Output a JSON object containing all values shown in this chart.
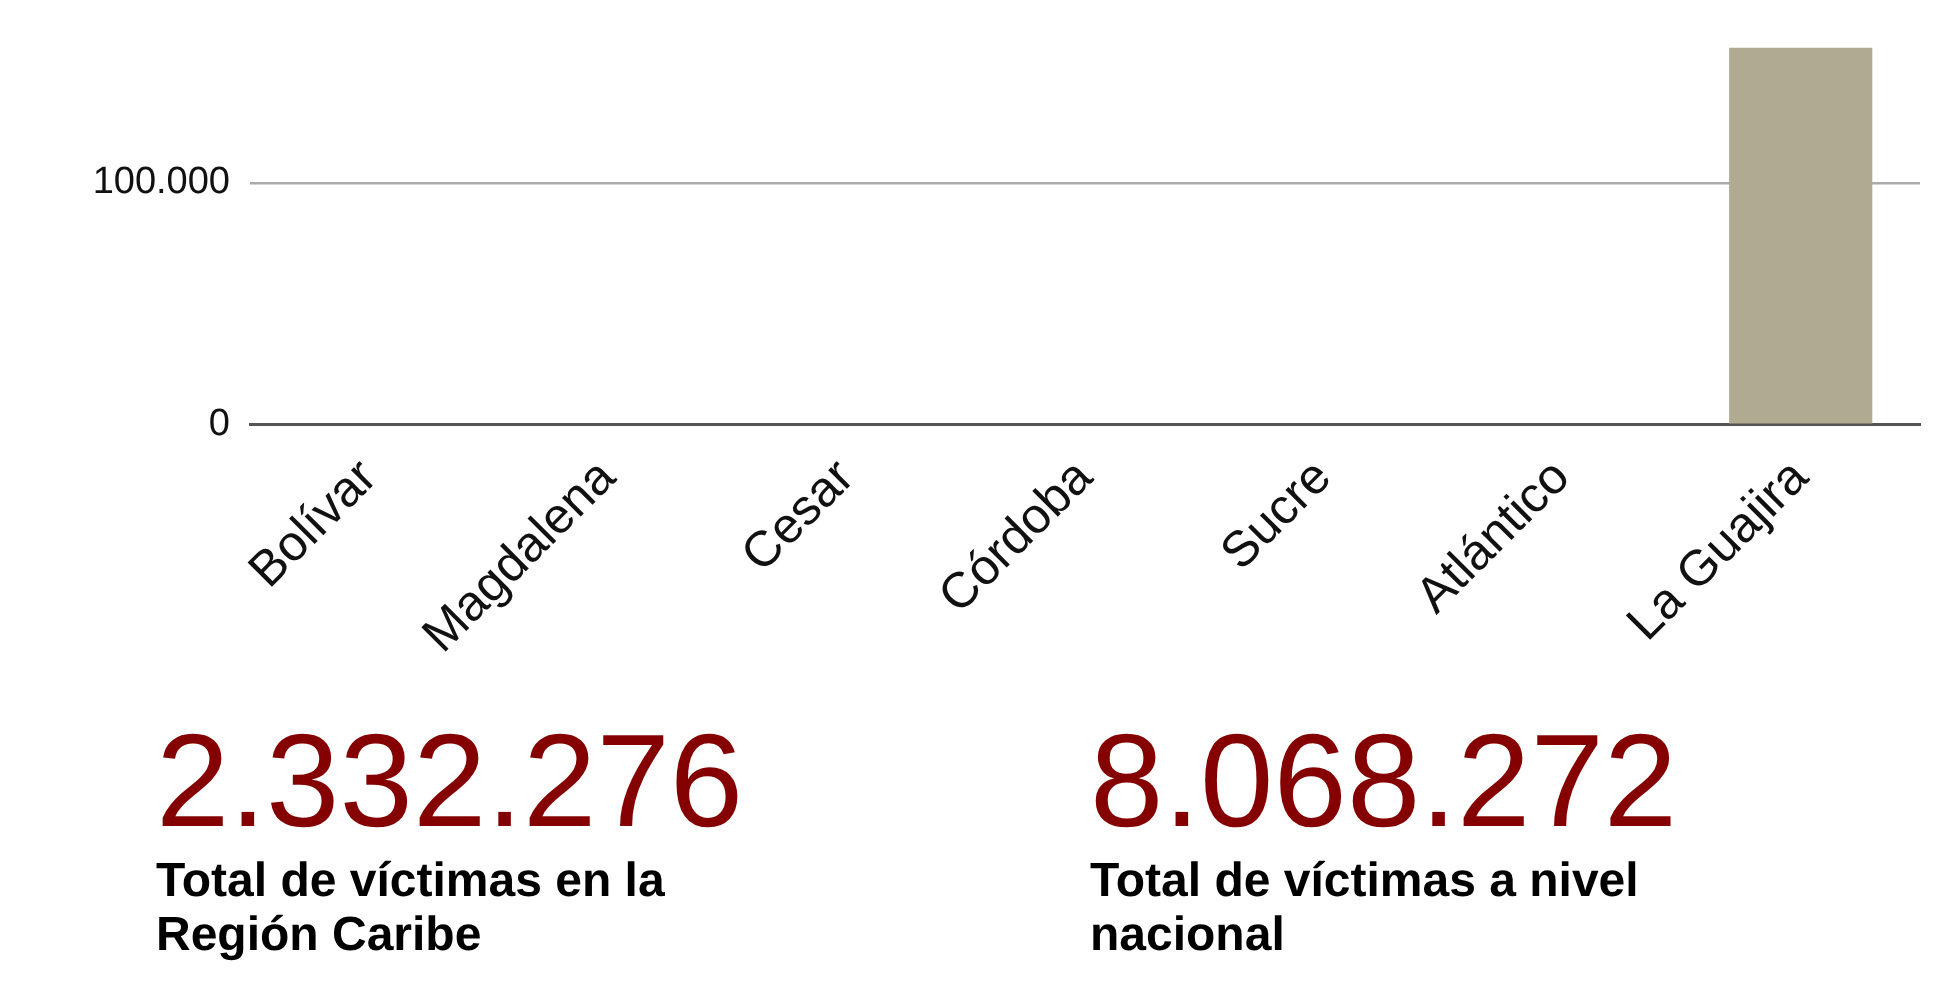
{
  "chart_data": {
    "type": "bar",
    "categories": [
      "Bolívar",
      "Magdalena",
      "Cesar",
      "Córdoba",
      "Sucre",
      "Atlántico",
      "La Guajira"
    ],
    "values": [
      null,
      null,
      null,
      null,
      null,
      null,
      156000
    ],
    "colors": [
      "#850000",
      "#b0aa90",
      "#b0aa90",
      "#b0aa90",
      "#b0aa90",
      "#b0aa90",
      "#b0aa90"
    ],
    "ylim": [
      0,
      158000
    ],
    "yticks": [
      0,
      {
        "value": 100000,
        "label": "100.000"
      }
    ],
    "grid": "y",
    "legend": false,
    "annotations": [
      "2.332.276",
      "Total de víctimas en la Región Caribe",
      "8.068.272",
      "Total de víctimas a nivel nacional"
    ]
  }
}
